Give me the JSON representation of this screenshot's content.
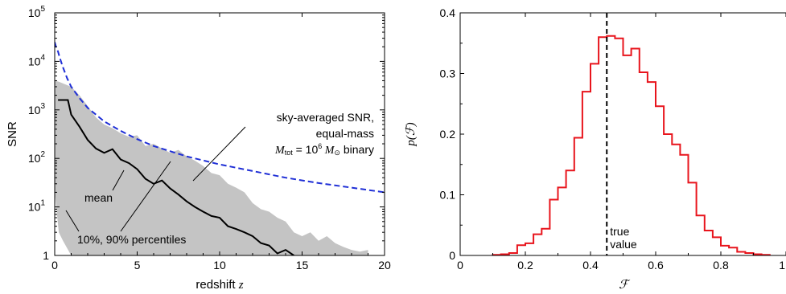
{
  "chart_data": [
    {
      "type": "area",
      "title": "",
      "xlabel": "redshift z",
      "ylabel": "SNR",
      "xlim": [
        0,
        20
      ],
      "ylim": [
        1,
        100000
      ],
      "yscale": "log",
      "xticks": [
        "0",
        "5",
        "10",
        "15",
        "20"
      ],
      "yticks": [
        {
          "base": "10",
          "exp": "5"
        },
        {
          "base": "10",
          "exp": "4"
        },
        {
          "base": "10",
          "exp": "3"
        },
        {
          "base": "10",
          "exp": "2"
        },
        {
          "base": "10",
          "exp": "1"
        },
        {
          "base": "1",
          "exp": ""
        }
      ],
      "band": {
        "x": [
          0,
          0.25,
          0.5,
          1,
          1.5,
          2,
          2.5,
          3,
          3.5,
          4,
          4.5,
          5,
          5.5,
          6,
          6.5,
          7,
          7.5,
          8,
          8.5,
          9,
          9.5,
          10,
          10.5,
          11,
          11.5,
          12,
          12.5,
          13,
          13.5,
          14,
          14.5,
          15,
          15.5,
          16,
          16.5,
          17,
          17.5,
          18,
          18.5,
          19
        ],
        "upper": [
          4000,
          3800,
          3500,
          3000,
          2000,
          1200,
          700,
          500,
          420,
          330,
          280,
          300,
          180,
          200,
          160,
          130,
          150,
          110,
          90,
          70,
          50,
          45,
          30,
          25,
          20,
          12,
          9,
          8,
          6,
          5,
          3,
          2.5,
          3,
          2,
          2.5,
          1.8,
          1.5,
          1.3,
          1.2,
          1.3
        ],
        "lower": [
          20,
          3,
          2,
          1,
          1,
          1,
          1,
          1,
          1,
          1,
          1,
          1,
          1,
          1,
          1,
          1,
          1,
          1,
          1,
          1,
          1,
          1,
          1,
          1,
          1,
          1,
          1,
          1,
          1,
          1,
          1,
          1,
          1,
          1,
          1,
          1,
          1,
          1,
          1,
          1
        ]
      },
      "series": [
        {
          "role": "mean",
          "style": "solid",
          "color": "#000000",
          "x": [
            0.2,
            0.8,
            1.0,
            1.5,
            2.0,
            2.5,
            3.0,
            3.5,
            4.0,
            4.5,
            5.0,
            5.5,
            6.0,
            6.5,
            7.0,
            7.5,
            8.0,
            8.5,
            9.0,
            9.5,
            10.0,
            10.5,
            11.0,
            11.5,
            12.0,
            12.5,
            13.0,
            13.5,
            14.0,
            14.5
          ],
          "y": [
            1600,
            1600,
            800,
            450,
            240,
            160,
            130,
            155,
            95,
            80,
            60,
            38,
            30,
            35,
            24,
            18,
            13,
            10,
            8,
            6.5,
            6,
            4,
            3.5,
            3,
            2.5,
            1.8,
            1.6,
            1.1,
            1.3,
            1.0
          ]
        },
        {
          "role": "sky-averaged",
          "style": "dashed",
          "color": "#1f2fd6",
          "x": [
            0.0,
            0.1,
            0.2,
            0.3,
            0.5,
            0.75,
            1.0,
            1.5,
            2.0,
            3.0,
            4.0,
            5.0,
            6.0,
            8.0,
            10.0,
            12.0,
            14.0,
            16.0,
            18.0,
            20.0
          ],
          "y": [
            25000,
            19000,
            16000,
            12000,
            7500,
            4500,
            3000,
            1750,
            1100,
            580,
            370,
            250,
            180,
            110,
            75,
            55,
            40,
            31,
            25,
            20
          ]
        }
      ],
      "annotations": [
        {
          "text": "sky-averaged SNR,"
        },
        {
          "text": "equal-mass"
        },
        {
          "parts": [
            "M",
            "tot",
            " = 10",
            "6",
            " M",
            "⊙",
            " binary"
          ]
        },
        {
          "text": "mean"
        },
        {
          "text": "10%, 90% percentiles"
        }
      ]
    },
    {
      "type": "histogram",
      "title": "",
      "xlabel": "ℱ",
      "ylabel": "p(ℱ)",
      "xlim": [
        0,
        1
      ],
      "ylim": [
        0,
        0.4
      ],
      "xticks": [
        "0",
        "0.2",
        "0.4",
        "0.6",
        "0.8",
        "1"
      ],
      "yticks": [
        "0",
        "0.1",
        "0.2",
        "0.3",
        "0.4"
      ],
      "color": "#e8141c",
      "bins": {
        "edges": [
          0.1,
          0.125,
          0.15,
          0.175,
          0.2,
          0.225,
          0.25,
          0.275,
          0.3,
          0.325,
          0.35,
          0.375,
          0.4,
          0.425,
          0.45,
          0.475,
          0.5,
          0.525,
          0.55,
          0.575,
          0.6,
          0.625,
          0.65,
          0.675,
          0.7,
          0.725,
          0.75,
          0.775,
          0.8,
          0.825,
          0.85,
          0.875,
          0.9,
          0.925,
          0.95
        ],
        "heights": [
          0.001,
          0.002,
          0.004,
          0.017,
          0.02,
          0.035,
          0.044,
          0.092,
          0.112,
          0.14,
          0.194,
          0.27,
          0.316,
          0.36,
          0.362,
          0.358,
          0.33,
          0.341,
          0.302,
          0.286,
          0.246,
          0.2,
          0.183,
          0.166,
          0.12,
          0.066,
          0.041,
          0.03,
          0.016,
          0.013,
          0.006,
          0.004,
          0.002,
          0.001
        ]
      },
      "marker": {
        "x": 0.45,
        "label_lines": [
          "true",
          "value"
        ],
        "style": "dashed"
      }
    }
  ]
}
